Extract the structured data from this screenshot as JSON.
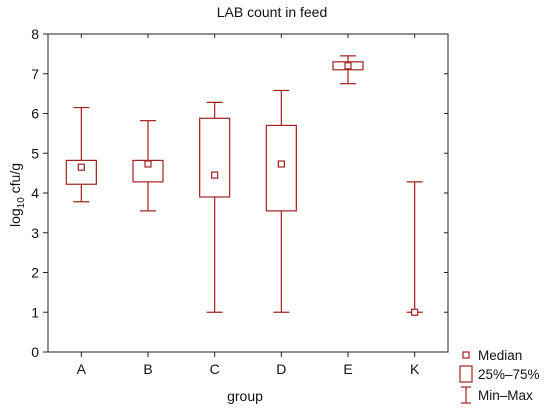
{
  "chart_data": {
    "type": "boxplot",
    "title": "LAB count in feed",
    "xlabel": "group",
    "ylabel_main": "log",
    "ylabel_sub": "10",
    "ylabel_rest": " cfu/g",
    "ylim": [
      0,
      8
    ],
    "yticks": [
      0,
      1,
      2,
      3,
      4,
      5,
      6,
      7,
      8
    ],
    "grid": false,
    "legend_position": "bottom-right",
    "colors": {
      "box": "#a32020",
      "axis": "#222222"
    },
    "categories": [
      "A",
      "B",
      "C",
      "D",
      "E",
      "K"
    ],
    "groups": [
      {
        "name": "A",
        "min": 3.78,
        "q1": 4.22,
        "median": 4.65,
        "q3": 4.82,
        "max": 6.15
      },
      {
        "name": "B",
        "min": 3.55,
        "q1": 4.28,
        "median": 4.73,
        "q3": 4.82,
        "max": 5.82
      },
      {
        "name": "C",
        "min": 1.0,
        "q1": 3.9,
        "median": 4.45,
        "q3": 5.88,
        "max": 6.28
      },
      {
        "name": "D",
        "min": 1.0,
        "q1": 3.55,
        "median": 4.73,
        "q3": 5.7,
        "max": 6.58
      },
      {
        "name": "E",
        "min": 6.75,
        "q1": 7.1,
        "median": 7.2,
        "q3": 7.3,
        "max": 7.45
      },
      {
        "name": "K",
        "min": 1.0,
        "q1": 1.0,
        "median": 1.0,
        "q3": 1.0,
        "max": 4.28
      }
    ],
    "legend": [
      {
        "key": "median",
        "label": "Median"
      },
      {
        "key": "box",
        "label": "25%–75%"
      },
      {
        "key": "whisker",
        "label": "Min–Max"
      }
    ]
  }
}
